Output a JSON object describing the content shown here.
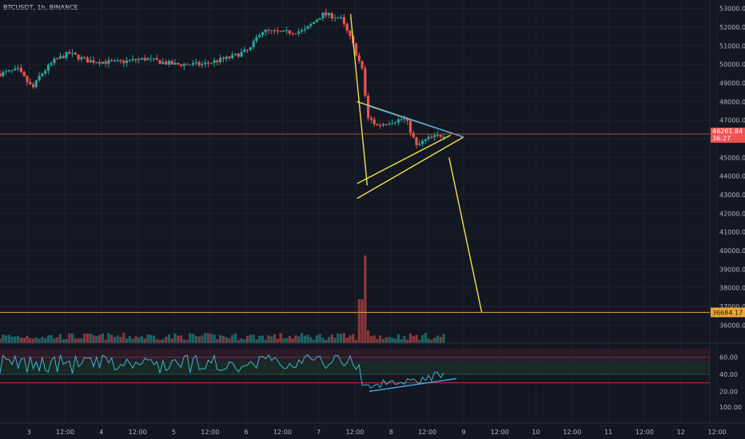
{
  "header": {
    "symbol": "BTCUSDT, 1h, BINANCE"
  },
  "colors": {
    "background": "#131722",
    "up": "#26a69a",
    "down": "#ef5350",
    "pattern_yellow": "#f4e04d",
    "trend_blue": "#4aa8e8",
    "rsi_line": "#3fb6c8",
    "hline": "#c65b3a",
    "rsi_bound": "#cc2b2b",
    "price_tag_bg": "#ef5350",
    "target_tag_bg": "#f0a636"
  },
  "chart_data": [
    {
      "type": "candlestick",
      "name": "price",
      "x_range": [
        2.6,
        12.4
      ],
      "ylim": [
        35500,
        53200
      ],
      "y_ticks": [
        "53000.00",
        "52000.00",
        "51000.00",
        "50000.00",
        "49000.00",
        "48000.00",
        "47000.00",
        "46000.00",
        "45000.00",
        "44000.00",
        "43000.00",
        "42000.00",
        "41000.00",
        "40000.00",
        "39000.00",
        "38000.00",
        "37000.00",
        "36000.00"
      ],
      "x_ticks": [
        {
          "x": 3,
          "label": "3"
        },
        {
          "x": 3.5,
          "label": "12:00"
        },
        {
          "x": 4,
          "label": "4"
        },
        {
          "x": 4.5,
          "label": "12:00"
        },
        {
          "x": 5,
          "label": "5"
        },
        {
          "x": 5.5,
          "label": "12:00"
        },
        {
          "x": 6,
          "label": "6"
        },
        {
          "x": 6.5,
          "label": "12:00"
        },
        {
          "x": 7,
          "label": "7"
        },
        {
          "x": 7.5,
          "label": "12:00"
        },
        {
          "x": 8,
          "label": "8"
        },
        {
          "x": 8.5,
          "label": "12:00"
        },
        {
          "x": 9,
          "label": "9"
        },
        {
          "x": 9.5,
          "label": "12:00"
        },
        {
          "x": 10,
          "label": "10"
        },
        {
          "x": 10.5,
          "label": "12:00"
        },
        {
          "x": 11,
          "label": "11"
        },
        {
          "x": 11.5,
          "label": "12:00"
        },
        {
          "x": 12,
          "label": "12"
        },
        {
          "x": 12.5,
          "label": "12:00"
        }
      ],
      "anchors": [
        {
          "x": 2.6,
          "price": 49500
        },
        {
          "x": 2.85,
          "price": 49700
        },
        {
          "x": 3.05,
          "price": 48700
        },
        {
          "x": 3.15,
          "price": 49400
        },
        {
          "x": 3.35,
          "price": 50200
        },
        {
          "x": 3.55,
          "price": 50600
        },
        {
          "x": 3.8,
          "price": 50200
        },
        {
          "x": 4.2,
          "price": 50100
        },
        {
          "x": 4.6,
          "price": 50300
        },
        {
          "x": 5.0,
          "price": 50000
        },
        {
          "x": 5.4,
          "price": 50000
        },
        {
          "x": 5.8,
          "price": 50400
        },
        {
          "x": 6.05,
          "price": 50800
        },
        {
          "x": 6.2,
          "price": 51800
        },
        {
          "x": 6.5,
          "price": 51700
        },
        {
          "x": 6.8,
          "price": 51800
        },
        {
          "x": 7.05,
          "price": 52700
        },
        {
          "x": 7.3,
          "price": 52500
        },
        {
          "x": 7.45,
          "price": 51300
        },
        {
          "x": 7.62,
          "price": 49500
        },
        {
          "x": 7.66,
          "price": 47300
        },
        {
          "x": 7.8,
          "price": 46700
        },
        {
          "x": 7.95,
          "price": 46900
        },
        {
          "x": 8.2,
          "price": 47100
        },
        {
          "x": 8.35,
          "price": 45600
        },
        {
          "x": 8.5,
          "price": 46000
        },
        {
          "x": 8.75,
          "price": 46261.84
        }
      ],
      "last_price": "46261.84",
      "countdown": "36:27",
      "target_price": "36684.17",
      "horizontal_lines": [
        46261.84,
        36684.17
      ],
      "annotations": [
        {
          "kind": "line",
          "color": "yellow",
          "from": [
            7.44,
            52700
          ],
          "to": [
            7.67,
            43500
          ]
        },
        {
          "kind": "line",
          "color": "yellow",
          "from": [
            7.53,
            43600
          ],
          "to": [
            8.82,
            46200
          ]
        },
        {
          "kind": "line",
          "color": "yellow",
          "from": [
            7.53,
            42800
          ],
          "to": [
            9.0,
            46100
          ]
        },
        {
          "kind": "line",
          "color": "yellow",
          "from": [
            7.53,
            48000
          ],
          "to": [
            9.0,
            46100
          ]
        },
        {
          "kind": "line",
          "color": "yellow",
          "from": [
            8.8,
            45000
          ],
          "to": [
            9.25,
            36700
          ]
        },
        {
          "kind": "line",
          "color": "blue",
          "from": [
            7.66,
            47800
          ],
          "to": [
            9.0,
            46100
          ]
        }
      ]
    },
    {
      "type": "bar",
      "name": "volume",
      "note": "volume bars, no scale printed"
    },
    {
      "type": "line",
      "name": "RSI",
      "ylim": [
        10,
        70
      ],
      "y_ticks": [
        "60.00",
        "40.00",
        "20.00"
      ],
      "bands": [
        40,
        60
      ],
      "lower_bound": 30,
      "partial_tick": "100.00",
      "annotations": [
        {
          "kind": "line",
          "color": "blue",
          "from": [
            7.7,
            20
          ],
          "to": [
            8.9,
            35
          ]
        }
      ]
    }
  ]
}
